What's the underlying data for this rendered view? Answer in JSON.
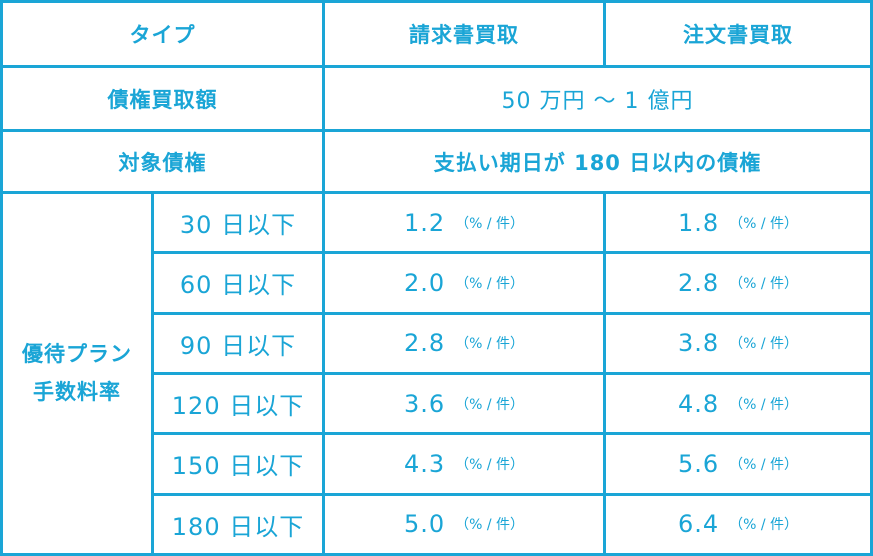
{
  "header": {
    "type": "タイプ",
    "col1": "請求書買取",
    "col2": "注文書買取"
  },
  "amount": {
    "label": "債権買取額",
    "value": "50 万円 ～ 1 億円"
  },
  "target": {
    "label": "対象債権",
    "value": "支払い期日が 180 日以内の債権"
  },
  "plan": {
    "line1": "優待プラン",
    "line2": "手数料率"
  },
  "unit": "（% / 件）",
  "rows": [
    {
      "period": "30 日以下",
      "invoice": "1.2",
      "order": "1.8"
    },
    {
      "period": "60 日以下",
      "invoice": "2.0",
      "order": "2.8"
    },
    {
      "period": "90 日以下",
      "invoice": "2.8",
      "order": "3.8"
    },
    {
      "period": "120 日以下",
      "invoice": "3.6",
      "order": "4.8"
    },
    {
      "period": "150 日以下",
      "invoice": "4.3",
      "order": "5.6"
    },
    {
      "period": "180 日以下",
      "invoice": "5.0",
      "order": "6.4"
    }
  ],
  "colors": {
    "accent": "#1aa5d6",
    "background": "#ffffff"
  }
}
